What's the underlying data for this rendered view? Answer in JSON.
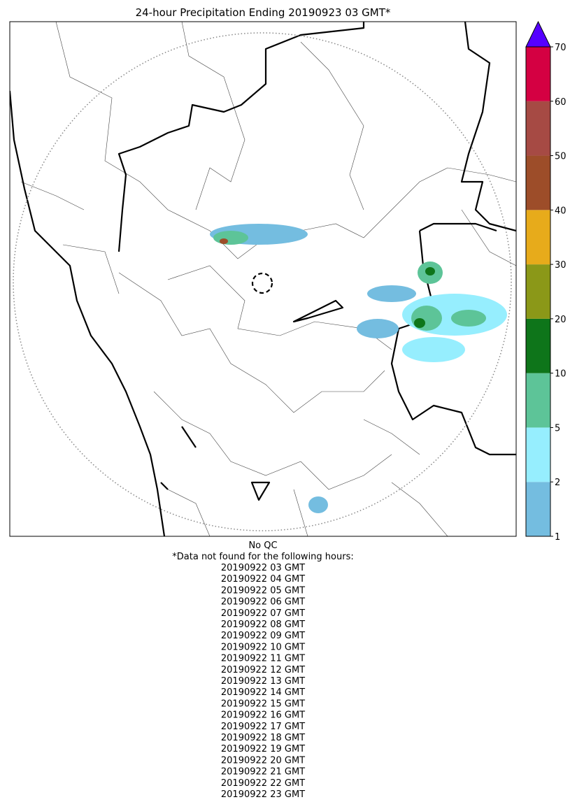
{
  "title": "24-hour Precipitation Ending 20190923 03 GMT*",
  "colorbar": {
    "ticks": [
      1,
      2,
      5,
      10,
      20,
      30,
      40,
      50,
      60,
      70
    ],
    "colors": [
      "#74bde0",
      "#96eefe",
      "#5dc498",
      "#0e751a",
      "#8b9818",
      "#e7ab1b",
      "#9d4d29",
      "#a64a44",
      "#d40042"
    ],
    "extend_color": "#5500ff"
  },
  "notes": {
    "qc": "No QC",
    "missing_header": "*Data not found for the following hours:",
    "missing_hours": [
      "20190922 03 GMT",
      "20190922 04 GMT",
      "20190922 05 GMT",
      "20190922 06 GMT",
      "20190922 07 GMT",
      "20190922 08 GMT",
      "20190922 09 GMT",
      "20190922 10 GMT",
      "20190922 11 GMT",
      "20190922 12 GMT",
      "20190922 13 GMT",
      "20190922 14 GMT",
      "20190922 15 GMT",
      "20190922 16 GMT",
      "20190922 17 GMT",
      "20190922 18 GMT",
      "20190922 19 GMT",
      "20190922 20 GMT",
      "20190922 21 GMT",
      "20190922 22 GMT",
      "20190922 23 GMT"
    ]
  }
}
